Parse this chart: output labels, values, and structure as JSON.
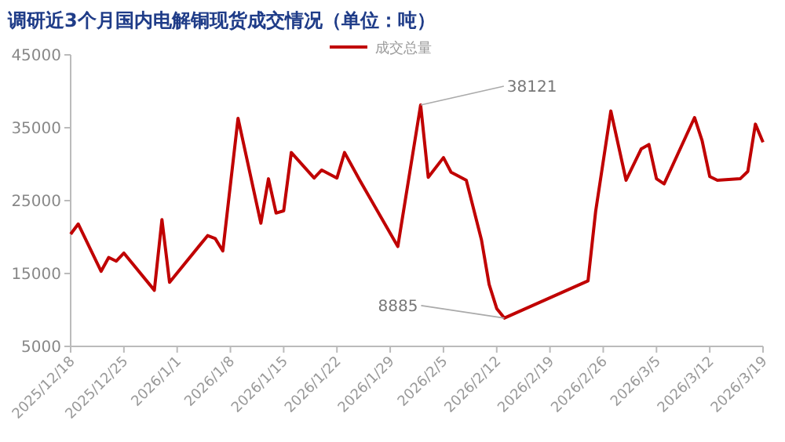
{
  "chart_data": {
    "type": "line",
    "title": "调研近3个月国内电解铜现货成交情况（单位：吨）",
    "legend": "top",
    "x": [
      "2025-12-18",
      "2025-12-19",
      "2025-12-22",
      "2025-12-23",
      "2025-12-24",
      "2025-12-25",
      "2025-12-29",
      "2025-12-30",
      "2025-12-31",
      "2026-01-05",
      "2026-01-06",
      "2026-01-07",
      "2026-01-09",
      "2026-01-12",
      "2026-01-13",
      "2026-01-14",
      "2026-01-15",
      "2026-01-16",
      "2026-01-19",
      "2026-01-20",
      "2026-01-22",
      "2026-01-23",
      "2026-01-25",
      "2026-01-30",
      "2026-02-02",
      "2026-02-03",
      "2026-02-05",
      "2026-02-06",
      "2026-02-08",
      "2026-02-10",
      "2026-02-11",
      "2026-02-12",
      "2026-02-13",
      "2026-02-24",
      "2026-02-25",
      "2026-02-27",
      "2026-03-01",
      "2026-03-03",
      "2026-03-04",
      "2026-03-05",
      "2026-03-06",
      "2026-03-10",
      "2026-03-11",
      "2026-03-12",
      "2026-03-13",
      "2026-03-16",
      "2026-03-17",
      "2026-03-18",
      "2026-03-19"
    ],
    "series": [
      {
        "name": "成交总量",
        "color": "#c00000",
        "values": [
          20400,
          21800,
          15300,
          17200,
          16700,
          17800,
          12700,
          22400,
          13800,
          20200,
          19800,
          18100,
          36300,
          21900,
          28000,
          23300,
          23600,
          31600,
          28100,
          29200,
          28100,
          31600,
          27800,
          18700,
          38121,
          28200,
          30900,
          28900,
          27800,
          19600,
          13500,
          10200,
          8885,
          14000,
          23500,
          37300,
          27800,
          32100,
          32700,
          28000,
          27300,
          36400,
          33200,
          28300,
          27800,
          28000,
          29000,
          35500,
          33000
        ]
      }
    ],
    "xlim": [
      "2025-12-18",
      "2026-03-19"
    ],
    "xticks": [
      {
        "value": "2025-12-18",
        "label": "2025/12/18"
      },
      {
        "value": "2025-12-25",
        "label": "2025/12/25"
      },
      {
        "value": "2026-01-01",
        "label": "2026/1/1"
      },
      {
        "value": "2026-01-08",
        "label": "2026/1/8"
      },
      {
        "value": "2026-01-15",
        "label": "2026/1/15"
      },
      {
        "value": "2026-01-22",
        "label": "2026/1/22"
      },
      {
        "value": "2026-01-29",
        "label": "2026/1/29"
      },
      {
        "value": "2026-02-05",
        "label": "2026/2/5"
      },
      {
        "value": "2026-02-12",
        "label": "2026/2/12"
      },
      {
        "value": "2026-02-19",
        "label": "2026/2/19"
      },
      {
        "value": "2026-02-26",
        "label": "2026/2/26"
      },
      {
        "value": "2026-03-05",
        "label": "2026/3/5"
      },
      {
        "value": "2026-03-12",
        "label": "2026/3/12"
      },
      {
        "value": "2026-03-19",
        "label": "2026/3/19"
      }
    ],
    "ylim": [
      5000,
      45000
    ],
    "yticks": [
      5000,
      15000,
      25000,
      35000,
      45000
    ],
    "annotations": [
      {
        "text": "38121",
        "x": "2026-02-02",
        "y": 38121
      },
      {
        "text": "8885",
        "x": "2026-02-13",
        "y": 8885
      }
    ]
  }
}
